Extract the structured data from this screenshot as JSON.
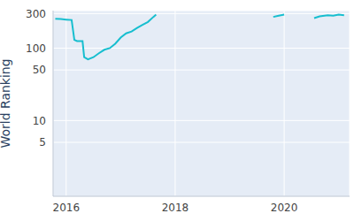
{
  "chart_data": {
    "type": "line",
    "y_label": "World Ranking",
    "x": [
      2015.8,
      2015.9,
      2016.0,
      2016.1,
      2016.15,
      2016.2,
      2016.3,
      2016.33,
      2016.4,
      2016.5,
      2016.6,
      2016.7,
      2016.8,
      2016.9,
      2017.0,
      2017.1,
      2017.2,
      2017.3,
      2017.4,
      2017.5,
      2017.6,
      2017.65,
      2018.5,
      2019.8,
      2019.9,
      2020.0,
      2020.2,
      2020.55,
      2020.65,
      2020.8,
      2020.9,
      2021.0,
      2021.1
    ],
    "values": [
      255,
      252,
      248,
      245,
      130,
      125,
      125,
      75,
      70,
      75,
      85,
      95,
      100,
      115,
      140,
      160,
      170,
      190,
      210,
      230,
      270,
      290,
      null,
      270,
      280,
      290,
      null,
      260,
      275,
      285,
      280,
      290,
      285
    ],
    "color": "#17becf",
    "line_style": "solid",
    "marker": "none",
    "xlim": [
      2015.76,
      2021.2
    ],
    "xticks": [
      2016,
      2018,
      2020
    ],
    "ylim": [
      0.9,
      330
    ],
    "yticks": [
      5,
      10,
      50,
      100,
      300
    ],
    "log": "y",
    "grid": true
  }
}
